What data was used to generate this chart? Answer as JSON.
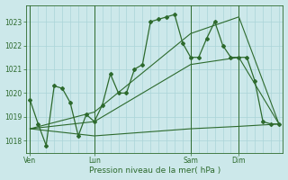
{
  "background_color": "#cce8ea",
  "grid_color": "#aad4d8",
  "line_color": "#2d6a2d",
  "title": "Pression niveau de la mer( hPa )",
  "ylim": [
    1017.5,
    1023.7
  ],
  "yticks": [
    1018,
    1019,
    1020,
    1021,
    1022,
    1023
  ],
  "day_labels": [
    "Ven",
    "Lun",
    "Sam",
    "Dim"
  ],
  "day_positions": [
    0,
    8,
    20,
    26
  ],
  "total_points": 32,
  "series1_x": [
    0,
    1,
    2,
    3,
    4,
    5,
    6,
    7,
    8,
    9,
    10,
    11,
    12,
    13,
    14,
    15,
    16,
    17,
    18,
    19,
    20,
    21,
    22,
    23,
    24,
    25,
    26,
    27,
    28,
    29,
    30,
    31
  ],
  "series1_y": [
    1019.7,
    1018.7,
    1017.8,
    1020.3,
    1020.2,
    1019.6,
    1018.2,
    1019.1,
    1018.8,
    1019.5,
    1020.8,
    1020.0,
    1020.0,
    1021.0,
    1021.2,
    1023.0,
    1023.1,
    1023.2,
    1023.3,
    1022.1,
    1021.5,
    1021.5,
    1022.3,
    1023.0,
    1022.0,
    1021.5,
    1021.5,
    1021.5,
    1020.5,
    1018.8,
    1018.7,
    1018.7
  ],
  "series2_x": [
    0,
    8,
    20,
    26,
    31
  ],
  "series2_y": [
    1018.5,
    1018.2,
    1018.5,
    1018.6,
    1018.7
  ],
  "series3_x": [
    0,
    8,
    20,
    26,
    31
  ],
  "series3_y": [
    1018.5,
    1018.8,
    1021.2,
    1021.5,
    1018.7
  ],
  "series4_x": [
    0,
    8,
    20,
    26,
    31
  ],
  "series4_y": [
    1018.5,
    1019.2,
    1022.5,
    1023.2,
    1018.7
  ]
}
